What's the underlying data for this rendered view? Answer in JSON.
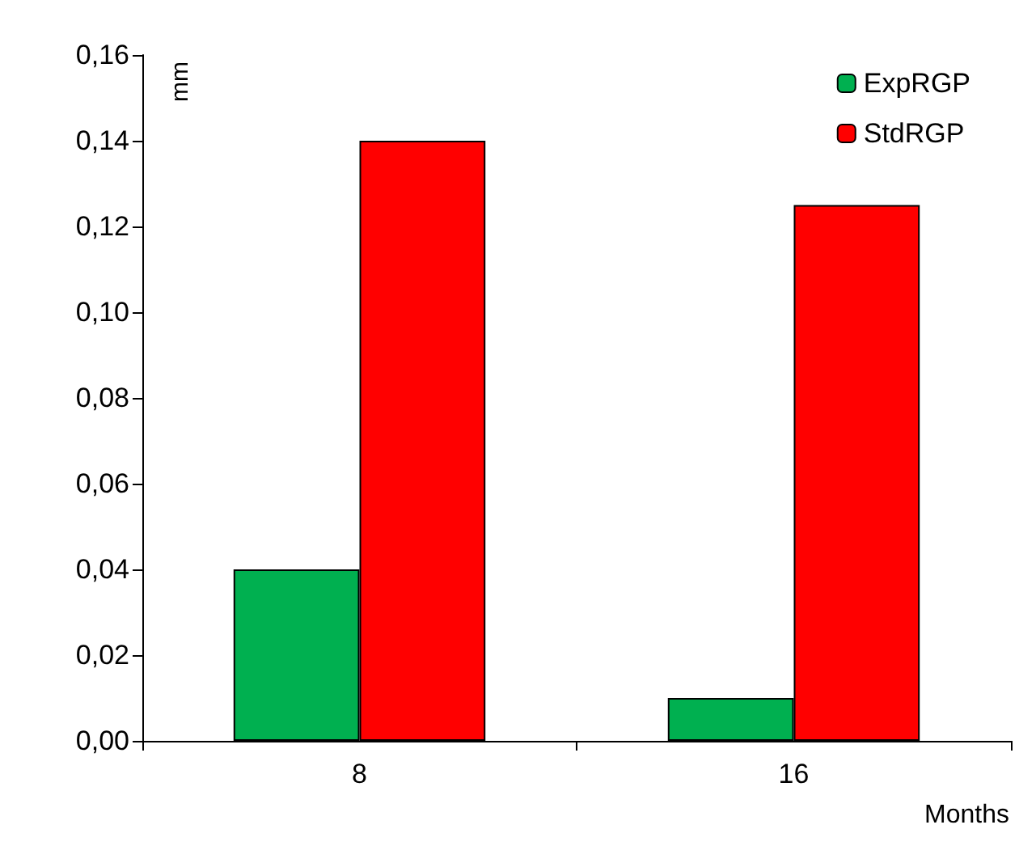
{
  "chart_data": {
    "type": "bar",
    "xlabel": "Months",
    "ylabel": "mm",
    "categories": [
      "8",
      "16"
    ],
    "series": [
      {
        "name": "ExpRGP",
        "color": "#00b050",
        "values": [
          0.04,
          0.01
        ]
      },
      {
        "name": "StdRGP",
        "color": "#ff0000",
        "values": [
          0.14,
          0.125
        ]
      }
    ],
    "ylim": [
      0,
      0.16
    ],
    "yticks": [
      {
        "value": 0,
        "label": "0,00"
      },
      {
        "value": 0.02,
        "label": "0,02"
      },
      {
        "value": 0.04,
        "label": "0,04"
      },
      {
        "value": 0.06,
        "label": "0,06"
      },
      {
        "value": 0.08,
        "label": "0,08"
      },
      {
        "value": 0.1,
        "label": "0,10"
      },
      {
        "value": 0.12,
        "label": "0,12"
      },
      {
        "value": 0.14,
        "label": "0,14"
      },
      {
        "value": 0.16,
        "label": "0,16"
      }
    ],
    "grid": false,
    "legend": "top right"
  }
}
